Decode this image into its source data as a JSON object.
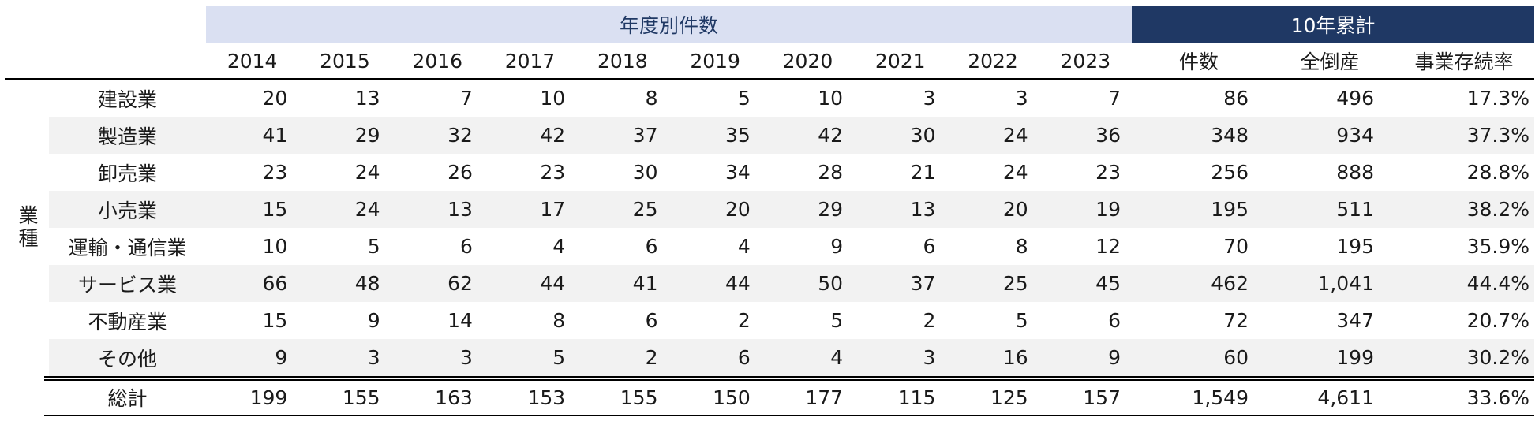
{
  "table": {
    "group_headers": [
      "年度別件数",
      "10年累計"
    ],
    "columns": [
      "2014",
      "2015",
      "2016",
      "2017",
      "2018",
      "2019",
      "2020",
      "2021",
      "2022",
      "2023",
      "件数",
      "全倒産",
      "事業存続率"
    ],
    "row_group_label": "業種",
    "rows": [
      {
        "label": "建設業",
        "cells": [
          "20",
          "13",
          "7",
          "10",
          "8",
          "5",
          "10",
          "3",
          "3",
          "7",
          "86",
          "496",
          "17.3%"
        ]
      },
      {
        "label": "製造業",
        "cells": [
          "41",
          "29",
          "32",
          "42",
          "37",
          "35",
          "42",
          "30",
          "24",
          "36",
          "348",
          "934",
          "37.3%"
        ]
      },
      {
        "label": "卸売業",
        "cells": [
          "23",
          "24",
          "26",
          "23",
          "30",
          "34",
          "28",
          "21",
          "24",
          "23",
          "256",
          "888",
          "28.8%"
        ]
      },
      {
        "label": "小売業",
        "cells": [
          "15",
          "24",
          "13",
          "17",
          "25",
          "20",
          "29",
          "13",
          "20",
          "19",
          "195",
          "511",
          "38.2%"
        ]
      },
      {
        "label": "運輸・通信業",
        "cells": [
          "10",
          "5",
          "6",
          "4",
          "6",
          "4",
          "9",
          "6",
          "8",
          "12",
          "70",
          "195",
          "35.9%"
        ]
      },
      {
        "label": "サービス業",
        "cells": [
          "66",
          "48",
          "62",
          "44",
          "41",
          "44",
          "50",
          "37",
          "25",
          "45",
          "462",
          "1,041",
          "44.4%"
        ]
      },
      {
        "label": "不動産業",
        "cells": [
          "15",
          "9",
          "14",
          "8",
          "6",
          "2",
          "5",
          "2",
          "5",
          "6",
          "72",
          "347",
          "20.7%"
        ]
      },
      {
        "label": "その他",
        "cells": [
          "9",
          "3",
          "3",
          "5",
          "2",
          "6",
          "4",
          "3",
          "16",
          "9",
          "60",
          "199",
          "30.2%"
        ]
      }
    ],
    "total": {
      "label": "総計",
      "cells": [
        "199",
        "155",
        "163",
        "153",
        "155",
        "150",
        "177",
        "115",
        "125",
        "157",
        "1,549",
        "4,611",
        "33.6%"
      ]
    }
  }
}
